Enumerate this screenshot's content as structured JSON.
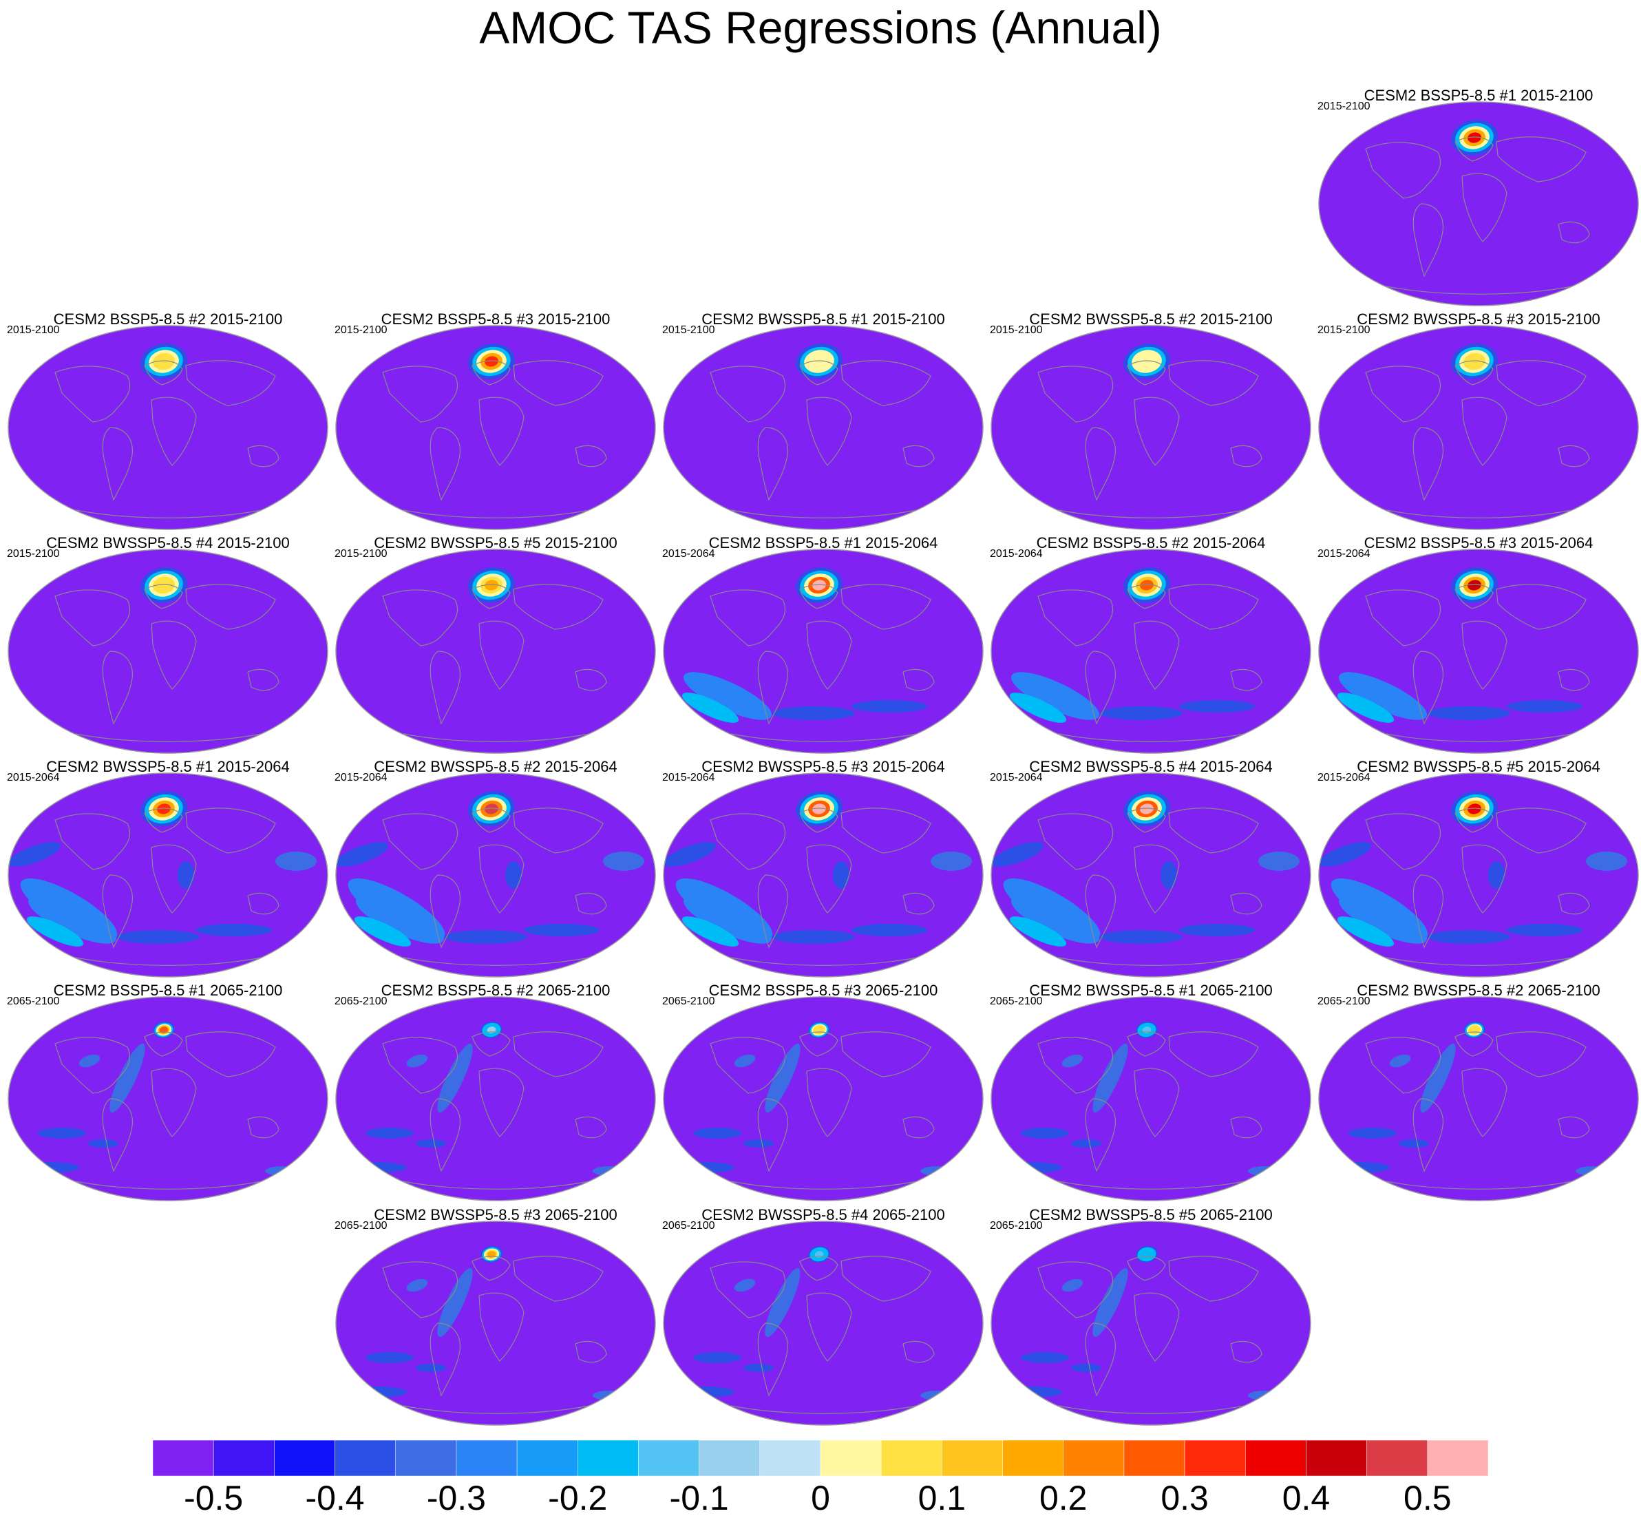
{
  "title": "AMOC TAS Regressions (Annual)",
  "colors": {
    "background_level": "#7f22f2",
    "coast": "#8a8a8a",
    "levels": [
      "#7f22f2",
      "#3f14f5",
      "#1111f7",
      "#2c4fe6",
      "#3c6de5",
      "#2a84f5",
      "#169cf8",
      "#00bcf6",
      "#52c3f2",
      "#98cfed",
      "#bde1f5",
      "#fff8a0",
      "#ffe043",
      "#ffc51e",
      "#ffa800",
      "#ff8200",
      "#ff5a00",
      "#ff2a0a",
      "#ee0000",
      "#c8000a",
      "#dc3c46",
      "#ffb0b0"
    ]
  },
  "chart_data": {
    "type": "contour-map-panels",
    "projection": "global mollweide-style ellipse",
    "colorbar": {
      "tick_labels": [
        "-0.5",
        "-0.4",
        "-0.3",
        "-0.2",
        "-0.1",
        "0",
        "0.1",
        "0.2",
        "0.3",
        "0.4",
        "0.5"
      ],
      "tick_values": [
        -0.5,
        -0.4,
        -0.3,
        -0.2,
        -0.1,
        0,
        0.1,
        0.2,
        0.3,
        0.4,
        0.5
      ],
      "range": [
        -0.55,
        0.55
      ],
      "n_boxes": 22
    },
    "panels": [
      {
        "title": "CESM2 BSSP5-8.5 #1 2015-2100",
        "subtitle": "2015-2100",
        "na_peak": 0.35,
        "pattern": "na"
      },
      {
        "title": "CESM2 BSSP5-8.5 #2 2015-2100",
        "subtitle": "2015-2100",
        "na_peak": 0.05,
        "pattern": "na"
      },
      {
        "title": "CESM2 BSSP5-8.5 #3 2015-2100",
        "subtitle": "2015-2100",
        "na_peak": 0.3,
        "pattern": "na"
      },
      {
        "title": "CESM2 BWSSP5-8.5 #1 2015-2100",
        "subtitle": "2015-2100",
        "na_peak": 0.0,
        "pattern": "na"
      },
      {
        "title": "CESM2 BWSSP5-8.5 #2 2015-2100",
        "subtitle": "2015-2100",
        "na_peak": 0.0,
        "pattern": "na"
      },
      {
        "title": "CESM2 BWSSP5-8.5 #3 2015-2100",
        "subtitle": "2015-2100",
        "na_peak": 0.05,
        "pattern": "na"
      },
      {
        "title": "CESM2 BWSSP5-8.5 #4 2015-2100",
        "subtitle": "2015-2100",
        "na_peak": 0.05,
        "pattern": "na"
      },
      {
        "title": "CESM2 BWSSP5-8.5 #5 2015-2100",
        "subtitle": "2015-2100",
        "na_peak": 0.2,
        "pattern": "na"
      },
      {
        "title": "CESM2 BSSP5-8.5 #1 2015-2064",
        "subtitle": "2015-2064",
        "na_peak": 0.5,
        "pattern": "na+south"
      },
      {
        "title": "CESM2 BSSP5-8.5 #2 2015-2064",
        "subtitle": "2015-2064",
        "na_peak": 0.25,
        "pattern": "na+south"
      },
      {
        "title": "CESM2 BSSP5-8.5 #3 2015-2064",
        "subtitle": "2015-2064",
        "na_peak": 0.4,
        "pattern": "na+south"
      },
      {
        "title": "CESM2 BWSSP5-8.5 #1 2015-2064",
        "subtitle": "2015-2064",
        "na_peak": 0.3,
        "pattern": "na+south+pacific"
      },
      {
        "title": "CESM2 BWSSP5-8.5 #2 2015-2064",
        "subtitle": "2015-2064",
        "na_peak": 0.45,
        "pattern": "na+south+pacific"
      },
      {
        "title": "CESM2 BWSSP5-8.5 #3 2015-2064",
        "subtitle": "2015-2064",
        "na_peak": 0.5,
        "pattern": "na+south+pacific"
      },
      {
        "title": "CESM2 BWSSP5-8.5 #4 2015-2064",
        "subtitle": "2015-2064",
        "na_peak": 0.5,
        "pattern": "na+south+pacific"
      },
      {
        "title": "CESM2 BWSSP5-8.5 #5 2015-2064",
        "subtitle": "2015-2064",
        "na_peak": 0.35,
        "pattern": "na+south+pacific"
      },
      {
        "title": "CESM2 BSSP5-8.5 #1 2065-2100",
        "subtitle": "2065-2100",
        "na_peak": 0.25,
        "pattern": "gulfstream"
      },
      {
        "title": "CESM2 BSSP5-8.5 #2 2065-2100",
        "subtitle": "2065-2100",
        "na_peak": -0.1,
        "pattern": "gulfstream"
      },
      {
        "title": "CESM2 BSSP5-8.5 #3 2065-2100",
        "subtitle": "2065-2100",
        "na_peak": 0.05,
        "pattern": "gulfstream"
      },
      {
        "title": "CESM2 BWSSP5-8.5 #1 2065-2100",
        "subtitle": "2065-2100",
        "na_peak": -0.15,
        "pattern": "gulfstream"
      },
      {
        "title": "CESM2 BWSSP5-8.5 #2 2065-2100",
        "subtitle": "2065-2100",
        "na_peak": 0.05,
        "pattern": "gulfstream"
      },
      {
        "title": "CESM2 BWSSP5-8.5 #3 2065-2100",
        "subtitle": "2065-2100",
        "na_peak": 0.15,
        "pattern": "gulfstream"
      },
      {
        "title": "CESM2 BWSSP5-8.5 #4 2065-2100",
        "subtitle": "2065-2100",
        "na_peak": -0.15,
        "pattern": "gulfstream"
      },
      {
        "title": "CESM2 BWSSP5-8.5 #5 2065-2100",
        "subtitle": "2065-2100",
        "na_peak": -0.2,
        "pattern": "gulfstream"
      }
    ]
  }
}
